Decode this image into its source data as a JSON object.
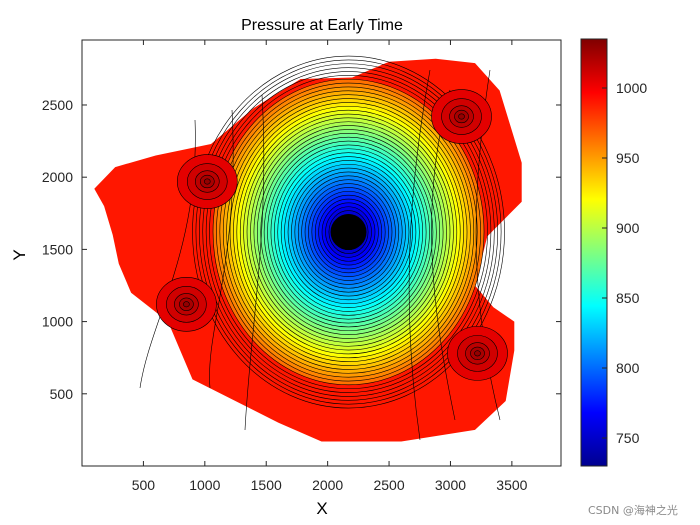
{
  "chart_data": {
    "type": "contour",
    "title": "Pressure at Early Time",
    "xlabel": "X",
    "ylabel": "Y",
    "xlim": [
      0,
      3900
    ],
    "ylim": [
      0,
      2950
    ],
    "xticks": [
      500,
      1000,
      1500,
      2000,
      2500,
      3000,
      3500
    ],
    "yticks": [
      500,
      1000,
      1500,
      2000,
      2500
    ],
    "colorbar": {
      "colormap": "jet",
      "range": [
        730,
        1035
      ],
      "ticks": [
        750,
        800,
        850,
        900,
        950,
        1000
      ]
    },
    "domain_boundary": [
      [
        100,
        1920
      ],
      [
        270,
        2070
      ],
      [
        600,
        2150
      ],
      [
        1050,
        2230
      ],
      [
        1400,
        2480
      ],
      [
        1780,
        2680
      ],
      [
        2200,
        2690
      ],
      [
        2500,
        2800
      ],
      [
        2880,
        2820
      ],
      [
        3200,
        2790
      ],
      [
        3400,
        2600
      ],
      [
        3580,
        2100
      ],
      [
        3580,
        1830
      ],
      [
        3300,
        1590
      ],
      [
        3200,
        1250
      ],
      [
        3350,
        1100
      ],
      [
        3520,
        1000
      ],
      [
        3520,
        800
      ],
      [
        3450,
        450
      ],
      [
        3200,
        250
      ],
      [
        2600,
        170
      ],
      [
        1950,
        170
      ],
      [
        1600,
        300
      ],
      [
        900,
        600
      ],
      [
        700,
        1000
      ],
      [
        400,
        1200
      ],
      [
        300,
        1400
      ],
      [
        250,
        1600
      ],
      [
        180,
        1800
      ]
    ],
    "pressure_center": {
      "x": 2170,
      "y": 1620,
      "value": 730
    },
    "sources": [
      {
        "x": 1020,
        "y": 1970,
        "value": 1035
      },
      {
        "x": 3090,
        "y": 2420,
        "value": 1035
      },
      {
        "x": 850,
        "y": 1120,
        "value": 1035
      },
      {
        "x": 3220,
        "y": 780,
        "value": 1035
      }
    ]
  },
  "watermark": "CSDN @海神之光"
}
